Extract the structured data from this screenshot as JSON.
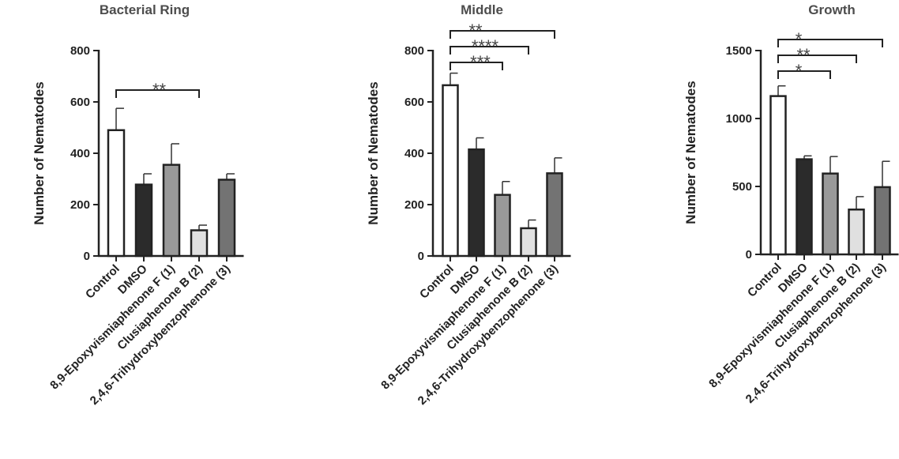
{
  "chart_data": [
    {
      "type": "bar",
      "title": "Bacterial Ring",
      "ylabel": "Number of Nematodes",
      "ylim": [
        0,
        800
      ],
      "yticks": [
        0,
        200,
        400,
        600,
        800
      ],
      "categories": [
        "Control",
        "DMSO",
        "8,9-Epoxyvismiaphenone  F (1)",
        "Clusiaphenone B (2)",
        "2,4,6-Trihydroxybenzophenone (3)"
      ],
      "values": [
        490,
        278,
        355,
        100,
        297
      ],
      "errors": [
        85,
        42,
        82,
        20,
        23
      ],
      "colors": [
        "#ffffff",
        "#2b2b2b",
        "#999999",
        "#e0e0e0",
        "#737373"
      ],
      "significance": [
        {
          "from": 0,
          "to": 3,
          "label": "**"
        }
      ]
    },
    {
      "type": "bar",
      "title": "Middle",
      "ylabel": "Number of Nematodes",
      "ylim": [
        0,
        800
      ],
      "yticks": [
        0,
        200,
        400,
        600,
        800
      ],
      "categories": [
        "Control",
        "DMSO",
        "8,9-Epoxyvismiaphenone  F (1)",
        "Clusiaphenone B (2)",
        "2,4,6-Trihydroxybenzophenone (3)"
      ],
      "values": [
        665,
        415,
        238,
        108,
        322
      ],
      "errors": [
        47,
        45,
        52,
        32,
        60
      ],
      "colors": [
        "#ffffff",
        "#2b2b2b",
        "#999999",
        "#e0e0e0",
        "#737373"
      ],
      "significance": [
        {
          "from": 0,
          "to": 2,
          "label": "***"
        },
        {
          "from": 0,
          "to": 3,
          "label": "****"
        },
        {
          "from": 0,
          "to": 4,
          "label": "**"
        }
      ]
    },
    {
      "type": "bar",
      "title": "Growth",
      "ylabel": "Number of Nematodes",
      "ylim": [
        0,
        1500
      ],
      "yticks": [
        0,
        500,
        1000,
        1500
      ],
      "categories": [
        "Control",
        "DMSO",
        "8,9-Epoxyvismiaphenone  F (1)",
        "Clusiaphenone B (2)",
        "2,4,6-Trihydroxybenzophenone (3)"
      ],
      "values": [
        1165,
        700,
        595,
        330,
        495
      ],
      "errors": [
        75,
        25,
        125,
        95,
        190
      ],
      "colors": [
        "#ffffff",
        "#2b2b2b",
        "#999999",
        "#e0e0e0",
        "#737373"
      ],
      "significance": [
        {
          "from": 0,
          "to": 2,
          "label": "*"
        },
        {
          "from": 0,
          "to": 3,
          "label": "**"
        },
        {
          "from": 0,
          "to": 4,
          "label": "*"
        }
      ]
    }
  ]
}
